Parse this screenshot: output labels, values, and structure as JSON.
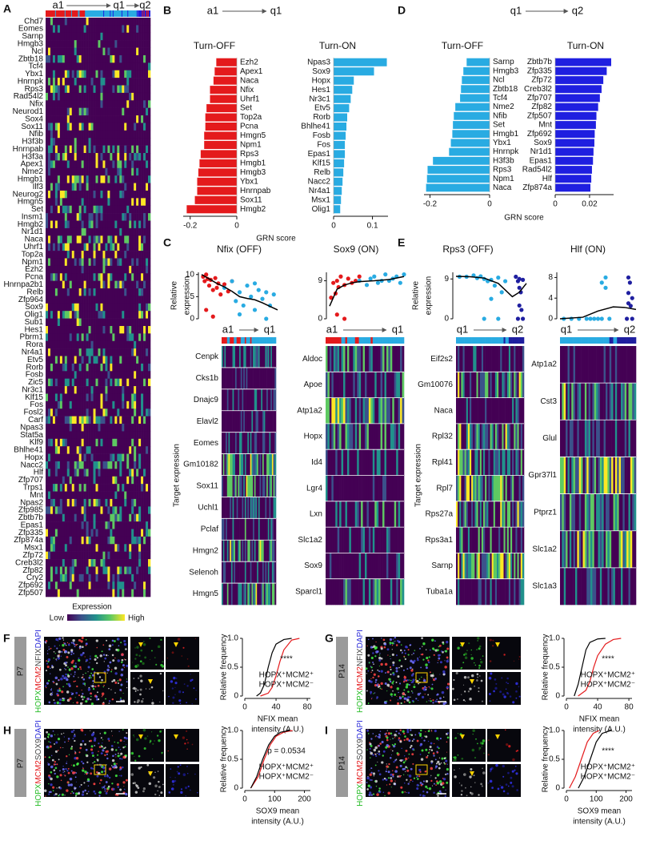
{
  "chart_data": [
    {
      "panel": "A",
      "type": "heatmap",
      "stages": [
        {
          "label": "a1",
          "color": "#e41a1c"
        },
        {
          "label": "q1",
          "color": "#29abe2"
        },
        {
          "label": "q2",
          "color": "#1f1fe0"
        }
      ],
      "rows": [
        "Chd7",
        "Eomes",
        "Sarnp",
        "Hmgb3",
        "Ncl",
        "Zbtb18",
        "Tcf4",
        "Ybx1",
        "Hnrnpk",
        {
          "label": "Rps3",
          "color": "#e41a1c"
        },
        "Rad54l2",
        {
          "label": "Nfix",
          "color": "#e41a1c"
        },
        "Neurod1",
        "Sox4",
        "Sox11",
        "Nfib",
        "H3f3b",
        "Hnrnpab",
        "H3f3a",
        "Apex1",
        "Nme2",
        "Hmgb1",
        "Ilf3",
        "Neurog2",
        "Hmgn5",
        "Set",
        "Insm1",
        "Hmgb2",
        "Nr1d1",
        "Naca",
        "Uhrf1",
        "Top2a",
        "Npm1",
        "Ezh2",
        "Pcna",
        "Hnrnpa2b1",
        "Relb",
        "Zfp964",
        {
          "label": "Sox9",
          "color": "#e41a1c"
        },
        "Olig1",
        "Sub1",
        "Hes1",
        "Pbrm1",
        "Rora",
        "Nr4a1",
        "Etv5",
        "Rorb",
        "Fosb",
        "Zic5",
        "Nr3c1",
        "Klf15",
        "Fos",
        "Fosl2",
        "Carf",
        "Npas3",
        "Stat5a",
        "Klf9",
        "Bhlhe41",
        "Hopx",
        "Nacc2",
        {
          "label": "Hlf",
          "color": "#e41a1c"
        },
        "Zfp707",
        "Trps1",
        "Mnt",
        "Npas2",
        "Zfp985",
        "Zbtb7b",
        "Epas1",
        "Zfp335",
        "Zfp874a",
        "Msx1",
        "Zfp72",
        "Creb3l2",
        "Zfp82",
        "Cry2",
        "Zfp692",
        "Zfp507"
      ],
      "colorbar": {
        "title": "Expression",
        "low": "Low",
        "high": "High"
      }
    },
    {
      "panel": "B",
      "type": "bar",
      "header": [
        {
          "label": "a1",
          "color": "#e41a1c"
        },
        {
          "label": "q1",
          "color": "#29abe2"
        }
      ],
      "xlabel": "GRN score",
      "title": "Turn-OFF",
      "color": "#e41a1c",
      "categories": [
        "Ezh2",
        "Apex1",
        "Naca",
        "Nfix",
        "Uhrf1",
        "Set",
        "Top2a",
        "Pcna",
        "Hmgn5",
        "Npm1",
        "Rps3",
        "Hmgb1",
        "Hmgb3",
        "Ybx1",
        "Hnrnpab",
        "Sox11",
        "Hmgb2"
      ],
      "values": [
        -0.088,
        -0.095,
        -0.1,
        -0.115,
        -0.115,
        -0.13,
        -0.135,
        -0.135,
        -0.14,
        -0.14,
        -0.155,
        -0.16,
        -0.165,
        -0.17,
        -0.17,
        -0.18,
        -0.215
      ],
      "xlim": [
        -0.23,
        0
      ],
      "xticks": [
        -0.2,
        0
      ]
    },
    {
      "type": "bar",
      "title": "Turn-ON",
      "color": "#29abe2",
      "categories": [
        "Npas3",
        "Sox9",
        "Hopx",
        "Hes1",
        "Nr3c1",
        "Etv5",
        "Rorb",
        "Bhlhe41",
        "Fosb",
        "Fos",
        "Epas1",
        "Klf15",
        "Relb",
        "Nacc2",
        "Nr4a1",
        "Msx1",
        "Olig1"
      ],
      "values": [
        0.137,
        0.104,
        0.052,
        0.048,
        0.044,
        0.04,
        0.035,
        0.033,
        0.031,
        0.029,
        0.029,
        0.027,
        0.025,
        0.023,
        0.021,
        0.019,
        0.017
      ],
      "xlim": [
        0,
        0.14
      ],
      "xticks": [
        0,
        0.1
      ]
    },
    {
      "panel": "C",
      "type": "scatter",
      "title": "Nfix (OFF)",
      "ylabel": [
        "Relative",
        "expression"
      ],
      "target_label": "Target expression",
      "ylim": [
        0,
        10.5
      ],
      "yticks": [
        0,
        5,
        10
      ],
      "xlim": [
        0,
        1
      ],
      "series": [
        {
          "name": "a1",
          "color": "#e41a1c",
          "x": [
            0.02,
            0.04,
            0.06,
            0.08,
            0.1,
            0.12,
            0.15,
            0.18,
            0.2,
            0.22,
            0.25,
            0.3,
            0.35,
            0.4,
            0.06,
            0.15
          ],
          "values": [
            9.5,
            8.5,
            10,
            9,
            7.5,
            8.8,
            6.5,
            9.2,
            7,
            8,
            5.5,
            7.8,
            6.2,
            8.5,
            2,
            0.5
          ]
        },
        {
          "name": "q1",
          "color": "#29abe2",
          "x": [
            0.3,
            0.4,
            0.45,
            0.5,
            0.55,
            0.6,
            0.65,
            0.7,
            0.75,
            0.8,
            0.85,
            0.9,
            0.95,
            0.5,
            0.7,
            0.85
          ],
          "values": [
            7,
            8.5,
            4,
            6,
            3,
            7.5,
            5,
            2,
            6.5,
            4.5,
            0,
            3,
            5.5,
            1,
            8,
            6
          ]
        }
      ],
      "trend": {
        "color": "#000000",
        "x": [
          0,
          0.1,
          0.2,
          0.3,
          0.4,
          0.5,
          0.6,
          0.7,
          0.8,
          0.9,
          1
        ],
        "values": [
          10,
          9,
          8,
          7.2,
          6.2,
          5,
          4.6,
          4.3,
          3.6,
          2.8,
          2
        ]
      },
      "targets": [
        "Cenpk",
        "Cks1b",
        "Dnajc9",
        "Elavl2",
        "Eomes",
        "Gm10182",
        "Sox11",
        "Uchl1",
        "Pclaf",
        "Hmgn2",
        "Selenoh",
        "Hmgn5"
      ]
    },
    {
      "type": "scatter",
      "title": "Sox9 (ON)",
      "ylim": [
        0,
        11
      ],
      "yticks": [
        0,
        9
      ],
      "xlim": [
        0,
        1
      ],
      "series": [
        {
          "name": "a1",
          "color": "#e41a1c",
          "x": [
            0.02,
            0.05,
            0.08,
            0.1,
            0.12,
            0.15,
            0.2,
            0.25,
            0.3,
            0.35,
            0.4,
            0.1,
            0.2
          ],
          "values": [
            5,
            8.5,
            6,
            9,
            7.5,
            10,
            8,
            9.5,
            8.5,
            9,
            10,
            1,
            0
          ]
        },
        {
          "name": "q1",
          "color": "#29abe2",
          "x": [
            0.4,
            0.5,
            0.55,
            0.6,
            0.65,
            0.7,
            0.75,
            0.8,
            0.85,
            0.9,
            0.95,
            1
          ],
          "values": [
            9,
            8,
            9.5,
            10,
            8.5,
            9,
            10.5,
            9,
            9.5,
            10,
            8.5,
            10.5
          ]
        }
      ],
      "trend": {
        "color": "#000000",
        "x": [
          0,
          0.1,
          0.2,
          0.3,
          0.4,
          0.6,
          0.8,
          1
        ],
        "values": [
          3,
          7,
          8,
          8.5,
          8.8,
          9,
          9.3,
          10
        ]
      },
      "targets": [
        "Aldoc",
        "Apoe",
        "Atp1a2",
        "Hopx",
        "Id4",
        "Lgr4",
        "Lxn",
        "Slc1a2",
        "Sox9",
        "Sparcl1"
      ]
    },
    {
      "panel": "D",
      "type": "bar",
      "header": [
        {
          "label": "q1",
          "color": "#29abe2"
        },
        {
          "label": "q2",
          "color": "#1f1fe0"
        }
      ],
      "xlabel": "GRN score",
      "title": "Turn-OFF",
      "color": "#29abe2",
      "categories": [
        "Sarnp",
        "Hmgb3",
        "Ncl",
        "Zbtb18",
        "Tcf4",
        "Nme2",
        "Nfib",
        "Set",
        "Hmgb1",
        "Ybx1",
        "Hnrnpk",
        "H3f3b",
        "Rps3",
        "Npm1",
        "Naca"
      ],
      "values": [
        -0.077,
        -0.088,
        -0.093,
        -0.096,
        -0.099,
        -0.115,
        -0.12,
        -0.123,
        -0.125,
        -0.13,
        -0.136,
        -0.19,
        -0.208,
        -0.21,
        -0.213
      ],
      "xlim": [
        -0.22,
        0
      ],
      "xticks": [
        -0.2,
        0
      ]
    },
    {
      "type": "bar",
      "title": "Turn-ON",
      "color": "#1f1fe0",
      "categories": [
        "Zbtb7b",
        "Zfp335",
        "Zfp72",
        "Creb3l2",
        "Zfp707",
        "Zfp82",
        "Zfp507",
        "Mnt",
        "Zfp692",
        "Sox9",
        "Nr1d1",
        "Epas1",
        "Rad54l2",
        "Hlf",
        "Zfp874a"
      ],
      "values": [
        0.0326,
        0.03,
        0.028,
        0.027,
        0.026,
        0.025,
        0.024,
        0.0237,
        0.023,
        0.0228,
        0.0223,
        0.022,
        0.0214,
        0.021,
        0.0205
      ],
      "xlim": [
        0,
        0.034
      ],
      "xticks": [
        0,
        0.02
      ]
    },
    {
      "panel": "E",
      "type": "scatter",
      "title": "Rps3 (OFF)",
      "ylabel": [
        "Relative",
        "expression"
      ],
      "target_label": "Target expression",
      "ylim": [
        0,
        10.5
      ],
      "yticks": [
        0,
        9
      ],
      "xlim": [
        0,
        1
      ],
      "series": [
        {
          "name": "q1",
          "color": "#29abe2",
          "x": [
            0.05,
            0.15,
            0.25,
            0.3,
            0.35,
            0.4,
            0.45,
            0.5,
            0.55,
            0.6,
            0.65,
            0.7,
            0.4,
            0.5,
            0.6
          ],
          "values": [
            9.5,
            9.5,
            9.8,
            9.2,
            9.6,
            9,
            8.5,
            8.8,
            7.5,
            9.3,
            6,
            8.5,
            0,
            4.5,
            0
          ]
        },
        {
          "name": "q2",
          "color": "#1f1fa0",
          "x": [
            0.85,
            0.88,
            0.9,
            0.92,
            0.95,
            0.9,
            0.93,
            0.88,
            0.95,
            0.9
          ],
          "values": [
            9.5,
            8.5,
            7,
            6,
            8.8,
            3,
            2,
            0,
            0,
            9
          ]
        }
      ],
      "trend": {
        "color": "#000000",
        "x": [
          0,
          0.2,
          0.4,
          0.6,
          0.7,
          0.8,
          0.9,
          1
        ],
        "values": [
          9.6,
          9.5,
          9.2,
          8,
          6.5,
          5,
          6,
          8
        ]
      },
      "targets": [
        "Eif2s2",
        "Gm10076",
        "Naca",
        "Rpl32",
        "Rpl41",
        "Rpl7",
        "Rps27a",
        "Rps3a1",
        "Sarnp",
        "Tuba1a"
      ]
    },
    {
      "type": "scatter",
      "title": "Hlf (ON)",
      "ylim": [
        0,
        9
      ],
      "yticks": [
        0,
        4,
        8
      ],
      "xlim": [
        0,
        1
      ],
      "series": [
        {
          "name": "q1",
          "color": "#29abe2",
          "x": [
            0.05,
            0.15,
            0.25,
            0.35,
            0.4,
            0.45,
            0.5,
            0.55,
            0.6,
            0.65,
            0.55,
            0.6
          ],
          "values": [
            0,
            0,
            0,
            0,
            0,
            0,
            0,
            0,
            8,
            0,
            7,
            6
          ]
        },
        {
          "name": "q2",
          "color": "#1f1fa0",
          "x": [
            0.9,
            0.92,
            0.95,
            0.9,
            0.93,
            0.88,
            0.95,
            0.9
          ],
          "values": [
            8,
            7,
            4,
            3,
            2.5,
            0,
            0,
            5
          ]
        }
      ],
      "trend": {
        "color": "#000000",
        "x": [
          0,
          0.3,
          0.5,
          0.7,
          0.85,
          1
        ],
        "values": [
          0,
          0.3,
          1.5,
          2.3,
          2.2,
          1.8
        ]
      },
      "targets": [
        "Atp1a2",
        "Cst3",
        "Glul",
        "Gpr37l1",
        "Ptprz1",
        "Slc1a2",
        "Slc1a3"
      ]
    },
    {
      "panel": "F",
      "type": "line",
      "age": "P7",
      "stain": [
        {
          "text": "HOPX",
          "color": "#22bb22"
        },
        {
          "text": "MCM2",
          "color": "#e41a1c"
        },
        {
          "text": "NFIX",
          "color": "#444444"
        },
        {
          "text": "DAPI",
          "color": "#2b2bd9"
        }
      ],
      "ylabel": "Relative frequency",
      "xlabel": [
        "NFIX mean",
        "intensity (A.U.)"
      ],
      "stat": "****",
      "xlim": [
        0,
        84
      ],
      "xticks": [
        0,
        40,
        80
      ],
      "ylim": [
        0,
        1
      ],
      "yticks": [
        0,
        0.5,
        {
          "value": 1,
          "label": "1.0"
        }
      ],
      "series": [
        {
          "name": "HOPX⁺MCM2⁺",
          "color": "#e41a1c",
          "x": [
            20,
            30,
            35,
            40,
            45,
            50,
            60,
            70
          ],
          "values": [
            0,
            0.05,
            0.15,
            0.35,
            0.6,
            0.8,
            0.97,
            1
          ]
        },
        {
          "name": "HOPX⁺MCM2⁻",
          "color": "#000000",
          "x": [
            15,
            20,
            25,
            30,
            35,
            40,
            50,
            60
          ],
          "values": [
            0,
            0.05,
            0.2,
            0.5,
            0.75,
            0.9,
            0.98,
            1
          ]
        }
      ]
    },
    {
      "panel": "G",
      "type": "line",
      "age": "P14",
      "stain": [
        {
          "text": "HOPX",
          "color": "#22bb22"
        },
        {
          "text": "MCM2",
          "color": "#e41a1c"
        },
        {
          "text": "NFIX",
          "color": "#444444"
        },
        {
          "text": "DAPI",
          "color": "#2b2bd9"
        }
      ],
      "ylabel": "Relative frequency",
      "xlabel": [
        "NFIX mean",
        "intensity (A.U.)"
      ],
      "stat": "****",
      "xlim": [
        0,
        84
      ],
      "xticks": [
        0,
        40,
        80
      ],
      "ylim": [
        0,
        1
      ],
      "yticks": [
        0,
        0.5,
        {
          "value": 1,
          "label": "1.0"
        }
      ],
      "series": [
        {
          "name": "HOPX⁺MCM2⁺",
          "color": "#e41a1c",
          "x": [
            15,
            25,
            30,
            35,
            40,
            50,
            60,
            70
          ],
          "values": [
            0,
            0.1,
            0.25,
            0.5,
            0.7,
            0.9,
            0.98,
            1
          ]
        },
        {
          "name": "HOPX⁺MCM2⁻",
          "color": "#000000",
          "x": [
            10,
            15,
            20,
            25,
            30,
            40,
            50
          ],
          "values": [
            0,
            0.2,
            0.5,
            0.8,
            0.93,
            0.99,
            1
          ]
        }
      ]
    },
    {
      "panel": "H",
      "type": "line",
      "age": "P7",
      "stain": [
        {
          "text": "HOPX",
          "color": "#22bb22"
        },
        {
          "text": "MCM2",
          "color": "#e41a1c"
        },
        {
          "text": "SOX9",
          "color": "#444444"
        },
        {
          "text": "DAPI",
          "color": "#2b2bd9"
        }
      ],
      "ylabel": "Relative frequency",
      "xlabel": [
        "SOX9 mean",
        "intensity (A.U.)"
      ],
      "stat": "p = 0.0534",
      "xlim": [
        0,
        220
      ],
      "xticks": [
        0,
        100,
        200
      ],
      "ylim": [
        0,
        1
      ],
      "yticks": [
        0,
        0.5,
        {
          "value": 1,
          "label": "1.0"
        }
      ],
      "series": [
        {
          "name": "HOPX⁺MCM2⁺",
          "color": "#e41a1c",
          "x": [
            20,
            45,
            65,
            85,
            105,
            130,
            160
          ],
          "values": [
            0,
            0.2,
            0.5,
            0.75,
            0.9,
            0.97,
            1
          ]
        },
        {
          "name": "HOPX⁺MCM2⁻",
          "color": "#000000",
          "x": [
            20,
            40,
            60,
            80,
            100,
            120,
            150
          ],
          "values": [
            0,
            0.2,
            0.5,
            0.75,
            0.9,
            0.97,
            1
          ]
        }
      ]
    },
    {
      "panel": "I",
      "type": "line",
      "age": "P14",
      "stain": [
        {
          "text": "HOPX",
          "color": "#22bb22"
        },
        {
          "text": "MCM2",
          "color": "#e41a1c"
        },
        {
          "text": "SOX9",
          "color": "#444444"
        },
        {
          "text": "DAPI",
          "color": "#2b2bd9"
        }
      ],
      "ylabel": "Relative frequency",
      "xlabel": [
        "SOX9 mean",
        "intensity (A.U.)"
      ],
      "stat": "****",
      "xlim": [
        0,
        220
      ],
      "xticks": [
        0,
        100,
        200
      ],
      "ylim": [
        0,
        1
      ],
      "yticks": [
        0,
        0.5,
        {
          "value": 1,
          "label": "1.0"
        }
      ],
      "series": [
        {
          "name": "HOPX⁺MCM2⁺",
          "color": "#e41a1c",
          "x": [
            10,
            30,
            50,
            70,
            90,
            110
          ],
          "values": [
            0,
            0.2,
            0.5,
            0.8,
            0.95,
            1
          ]
        },
        {
          "name": "HOPX⁺MCM2⁻",
          "color": "#000000",
          "x": [
            40,
            60,
            80,
            100,
            120,
            150
          ],
          "values": [
            0,
            0.2,
            0.5,
            0.8,
            0.95,
            1
          ]
        }
      ]
    }
  ]
}
